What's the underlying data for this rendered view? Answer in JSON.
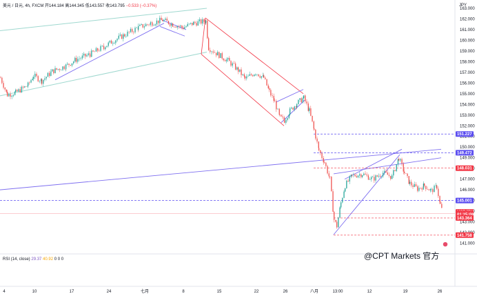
{
  "header": {
    "symbol": "美元 / 日元, 4h, FXCM",
    "o_label": "开",
    "o_value": "144.184",
    "h_label": "高",
    "h_value": "144.345",
    "l_label": "低",
    "l_value": "143.557",
    "c_label": "收",
    "c_value": "143.795",
    "change": "−0.533 (−0.37%)"
  },
  "rsi": {
    "label": "RSI (14, close)",
    "value1": "29.37",
    "value2": "40.92",
    "zeros": [
      "0",
      "0",
      "0"
    ]
  },
  "unit_label": "JPY",
  "watermark": "@CPT Markets 官方",
  "colors": {
    "up": "#26a69a",
    "down": "#ef5350",
    "trend": "#7e6ff0",
    "channel_red": "#f23645",
    "channel_green": "#9ed8cf"
  },
  "chart_data": {
    "type": "candlestick",
    "ylim": [
      140,
      163
    ],
    "y_ticks": [
      "163.000",
      "162.000",
      "161.000",
      "160.000",
      "159.000",
      "158.000",
      "157.000",
      "156.000",
      "155.000",
      "154.000",
      "153.000",
      "152.000",
      "151.000",
      "150.000",
      "149.000",
      "148.000",
      "147.000",
      "146.000",
      "145.000",
      "144.000",
      "143.000",
      "142.000",
      "141.000"
    ],
    "x_ticks": [
      "4",
      "10",
      "17",
      "24",
      "七月",
      "8",
      "15",
      "22",
      "26",
      "八月",
      "13:00",
      "12",
      "19",
      "26"
    ],
    "price_tags": [
      {
        "label": "151.227",
        "value": 151.227,
        "color": "#5b4df0"
      },
      {
        "label": "149.472",
        "value": 149.472,
        "color": "#5b4df0"
      },
      {
        "label": "148.031",
        "value": 148.031,
        "color": "#f23645"
      },
      {
        "label": "145.001",
        "value": 145.001,
        "color": "#5b4df0"
      },
      {
        "label": "USDJPY",
        "value": 143.93,
        "color": "#f23645"
      },
      {
        "label": "143.795",
        "value": 143.795,
        "color": "#f23645"
      },
      {
        "label": "01:25:09",
        "value": 143.67,
        "color": "#f23645"
      },
      {
        "label": "143.364",
        "value": 143.364,
        "color": "#f23645"
      },
      {
        "label": "141.758",
        "value": 141.758,
        "color": "#f23645"
      }
    ],
    "close_path": [
      [
        0,
        156.5
      ],
      [
        10,
        154.9
      ],
      [
        22,
        155.1
      ],
      [
        40,
        155.8
      ],
      [
        48,
        156.7
      ],
      [
        60,
        156.2
      ],
      [
        75,
        157.1
      ],
      [
        95,
        157.6
      ],
      [
        110,
        158.2
      ],
      [
        130,
        158.7
      ],
      [
        150,
        159.4
      ],
      [
        165,
        160.0
      ],
      [
        180,
        160.5
      ],
      [
        200,
        161.2
      ],
      [
        218,
        161.6
      ],
      [
        235,
        161.9
      ],
      [
        250,
        161.5
      ],
      [
        265,
        161.2
      ],
      [
        280,
        161.6
      ],
      [
        298,
        161.8
      ],
      [
        302,
        159.3
      ],
      [
        315,
        158.7
      ],
      [
        330,
        158.1
      ],
      [
        345,
        157.2
      ],
      [
        355,
        156.4
      ],
      [
        370,
        157.0
      ],
      [
        382,
        156.5
      ],
      [
        390,
        155.2
      ],
      [
        398,
        154.2
      ],
      [
        405,
        152.8
      ],
      [
        412,
        152.5
      ],
      [
        420,
        153.4
      ],
      [
        430,
        154.1
      ],
      [
        440,
        154.6
      ],
      [
        448,
        153.4
      ],
      [
        455,
        151.6
      ],
      [
        462,
        149.7
      ],
      [
        470,
        148.6
      ],
      [
        478,
        147.0
      ],
      [
        484,
        143.2
      ],
      [
        488,
        142.6
      ],
      [
        494,
        144.8
      ],
      [
        500,
        146.4
      ],
      [
        510,
        147.3
      ],
      [
        525,
        147.5
      ],
      [
        540,
        147.0
      ],
      [
        555,
        147.6
      ],
      [
        568,
        147.2
      ],
      [
        578,
        149.0
      ],
      [
        586,
        147.6
      ],
      [
        594,
        146.6
      ],
      [
        605,
        146.1
      ],
      [
        615,
        146.4
      ],
      [
        625,
        145.9
      ],
      [
        633,
        146.3
      ],
      [
        638,
        144.6
      ],
      [
        642,
        143.8
      ]
    ],
    "trend_lines": [
      {
        "from": [
          0,
          146.0
        ],
        "to": [
          640,
          149.8
        ]
      },
      {
        "from": [
          484,
          147.5
        ],
        "to": [
          640,
          149.0
        ]
      },
      {
        "from": [
          484,
          141.8
        ],
        "to": [
          580,
          149.3
        ]
      },
      {
        "from": [
          500,
          147.0
        ],
        "to": [
          583,
          149.8
        ]
      },
      {
        "from": [
          80,
          156.3
        ],
        "to": [
          238,
          161.6
        ]
      },
      {
        "from": [
          235,
          161.9
        ],
        "to": [
          270,
          161.0
        ]
      },
      {
        "from": [
          232,
          161.3
        ],
        "to": [
          268,
          160.4
        ]
      }
    ],
    "channels_red": [
      {
        "from": [
          298,
          162.1
        ],
        "to": [
          440,
          155.0
        ]
      },
      {
        "from": [
          292,
          158.7
        ],
        "to": [
          412,
          152.0
        ]
      }
    ],
    "channels_green": [
      {
        "from": [
          0,
          160.9
        ],
        "to": [
          300,
          163.0
        ]
      },
      {
        "from": [
          0,
          154.8
        ],
        "to": [
          300,
          158.9
        ]
      }
    ],
    "wedge_lines": [
      {
        "from": [
          400,
          154.2
        ],
        "to": [
          440,
          155.4
        ]
      },
      {
        "from": [
          408,
          152.3
        ],
        "to": [
          442,
          154.4
        ]
      }
    ]
  }
}
